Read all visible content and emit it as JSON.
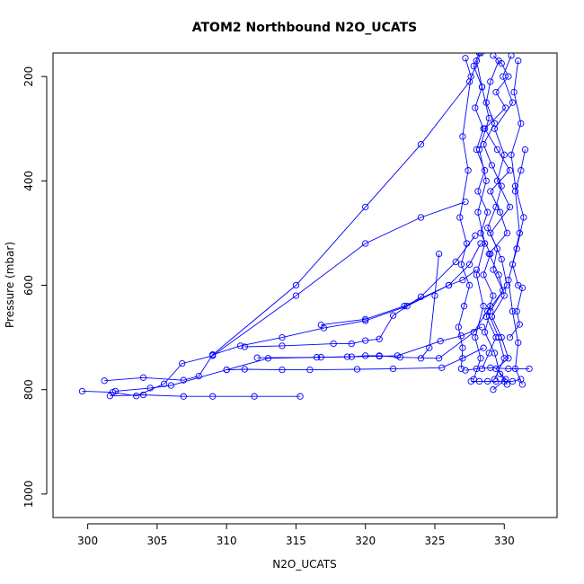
{
  "chart_data": {
    "type": "line",
    "title": "ATOM2 Northbound N2O_UCATS",
    "xlabel": "N2O_UCATS",
    "ylabel": "Pressure (mbar)",
    "xlim": [
      297.5,
      333.8
    ],
    "ylim": [
      1045,
      155
    ],
    "y_axis_inverted": true,
    "x_ticks": [
      300,
      305,
      310,
      315,
      320,
      325,
      330
    ],
    "y_ticks": [
      200,
      400,
      600,
      800,
      1000
    ],
    "grid": false,
    "legend": "none",
    "series_color": "#0000ff",
    "marker": "open-circle",
    "series": [
      {
        "values": [
          [
            329.2,
            160
          ],
          [
            329.8,
            175
          ],
          [
            330.3,
            200
          ],
          [
            329.4,
            230
          ],
          [
            330.1,
            260
          ],
          [
            328.6,
            300
          ],
          [
            329.5,
            340
          ],
          [
            330.4,
            380
          ],
          [
            329.0,
            420
          ],
          [
            329.7,
            460
          ],
          [
            330.2,
            500
          ],
          [
            328.9,
            540
          ],
          [
            329.6,
            580
          ],
          [
            330.0,
            620
          ],
          [
            329.1,
            660
          ],
          [
            329.8,
            700
          ],
          [
            330.3,
            740
          ],
          [
            329.4,
            760
          ],
          [
            330.1,
            780
          ],
          [
            329.2,
            800
          ]
        ]
      },
      {
        "values": [
          [
            330.5,
            160
          ],
          [
            329.9,
            200
          ],
          [
            330.6,
            250
          ],
          [
            329.3,
            300
          ],
          [
            330.0,
            350
          ],
          [
            329.5,
            400
          ],
          [
            330.4,
            450
          ],
          [
            329.0,
            500
          ],
          [
            329.8,
            550
          ],
          [
            330.2,
            600
          ],
          [
            328.8,
            650
          ],
          [
            329.6,
            700
          ],
          [
            330.0,
            740
          ],
          [
            329.3,
            780
          ]
        ]
      },
      {
        "values": [
          [
            328.0,
            170
          ],
          [
            328.4,
            220
          ],
          [
            328.9,
            280
          ],
          [
            328.2,
            340
          ],
          [
            328.7,
            400
          ],
          [
            328.1,
            460
          ],
          [
            328.6,
            520
          ],
          [
            328.0,
            580
          ],
          [
            328.5,
            640
          ],
          [
            327.9,
            700
          ],
          [
            328.3,
            740
          ],
          [
            327.8,
            780
          ]
        ]
      },
      {
        "values": [
          [
            331.5,
            340
          ],
          [
            331.2,
            380
          ],
          [
            330.8,
            420
          ],
          [
            331.1,
            500
          ],
          [
            330.6,
            560
          ],
          [
            331.0,
            600
          ],
          [
            331.3,
            605
          ],
          [
            330.9,
            650
          ],
          [
            331.1,
            675
          ],
          [
            330.4,
            700
          ]
        ]
      },
      {
        "values": [
          [
            327.2,
            165
          ],
          [
            327.6,
            200
          ],
          [
            327.0,
            315
          ],
          [
            327.4,
            380
          ],
          [
            326.8,
            470
          ],
          [
            327.3,
            520
          ],
          [
            326.9,
            560
          ],
          [
            327.5,
            600
          ],
          [
            327.1,
            640
          ],
          [
            326.7,
            680
          ],
          [
            327.0,
            720
          ],
          [
            326.9,
            760
          ]
        ]
      },
      {
        "values": [
          [
            329.6,
            170
          ],
          [
            329.0,
            210
          ],
          [
            328.7,
            250
          ],
          [
            329.3,
            290
          ],
          [
            328.5,
            330
          ],
          [
            329.1,
            370
          ],
          [
            329.8,
            410
          ],
          [
            329.4,
            450
          ],
          [
            328.8,
            490
          ],
          [
            329.5,
            530
          ],
          [
            329.2,
            570
          ],
          [
            329.9,
            610
          ],
          [
            329.0,
            650
          ],
          [
            328.6,
            690
          ],
          [
            329.3,
            730
          ],
          [
            329.7,
            770
          ],
          [
            330.2,
            790
          ]
        ]
      },
      {
        "values": [
          [
            331.0,
            170
          ],
          [
            330.7,
            230
          ],
          [
            331.2,
            290
          ],
          [
            330.5,
            350
          ],
          [
            330.8,
            410
          ],
          [
            331.4,
            470
          ],
          [
            330.9,
            530
          ],
          [
            330.3,
            590
          ],
          [
            330.6,
            650
          ],
          [
            331.0,
            710
          ],
          [
            330.8,
            760
          ],
          [
            331.3,
            790
          ]
        ]
      },
      {
        "values": [
          [
            301.2,
            783
          ],
          [
            304.0,
            777
          ],
          [
            306.9,
            782
          ],
          [
            308.0,
            774
          ],
          [
            309.0,
            733
          ],
          [
            311.0,
            716
          ],
          [
            314.0,
            700
          ],
          [
            317.0,
            682
          ],
          [
            320.0,
            668
          ],
          [
            323.0,
            640
          ],
          [
            326.0,
            600
          ],
          [
            327.0,
            590
          ],
          [
            328.0,
            570
          ]
        ]
      },
      {
        "values": [
          [
            299.6,
            803
          ],
          [
            301.8,
            805
          ],
          [
            303.5,
            812
          ],
          [
            305.5,
            789
          ],
          [
            306.8,
            750
          ],
          [
            309.0,
            735
          ],
          [
            315.0,
            620
          ],
          [
            320.0,
            520
          ],
          [
            324.0,
            470
          ],
          [
            327.2,
            440
          ]
        ]
      },
      {
        "values": [
          [
            301.6,
            812
          ],
          [
            304.0,
            810
          ],
          [
            306.9,
            813
          ],
          [
            309.0,
            813
          ],
          [
            312.0,
            813
          ],
          [
            315.3,
            813
          ]
        ]
      },
      {
        "values": [
          [
            302.0,
            803
          ],
          [
            304.5,
            797
          ],
          [
            306.0,
            792
          ],
          [
            310.0,
            762
          ],
          [
            311.3,
            761
          ],
          [
            314.0,
            762
          ],
          [
            316.0,
            762
          ],
          [
            319.4,
            761
          ],
          [
            322.0,
            760
          ],
          [
            325.5,
            758
          ],
          [
            327.0,
            740
          ],
          [
            328.5,
            720
          ]
        ]
      },
      {
        "values": [
          [
            310.0,
            762
          ],
          [
            313.0,
            740
          ],
          [
            316.5,
            738
          ],
          [
            319.0,
            737
          ],
          [
            320.0,
            735
          ],
          [
            321.0,
            735
          ],
          [
            322.5,
            738
          ],
          [
            325.3,
            740
          ],
          [
            327.8,
            690
          ],
          [
            329.0,
            640
          ]
        ]
      },
      {
        "values": [
          [
            311.3,
            718
          ],
          [
            314.0,
            716
          ],
          [
            317.7,
            712
          ],
          [
            319.0,
            712
          ],
          [
            320.0,
            706
          ],
          [
            321.0,
            703
          ],
          [
            322.0,
            658
          ],
          [
            324.0,
            622
          ],
          [
            326.5,
            555
          ],
          [
            327.9,
            505
          ]
        ]
      },
      {
        "values": [
          [
            316.8,
            676
          ],
          [
            320.0,
            665
          ],
          [
            322.8,
            640
          ],
          [
            326.0,
            600
          ],
          [
            327.5,
            560
          ],
          [
            328.3,
            520
          ]
        ]
      },
      {
        "values": [
          [
            312.2,
            739
          ],
          [
            316.8,
            738
          ],
          [
            318.7,
            737
          ],
          [
            321.0,
            736
          ],
          [
            322.3,
            735
          ],
          [
            325.4,
            707
          ],
          [
            326.9,
            697
          ],
          [
            328.4,
            680
          ]
        ]
      },
      {
        "values": [
          [
            309.0,
            733
          ],
          [
            315.0,
            600
          ],
          [
            320.0,
            450
          ],
          [
            324.0,
            330
          ],
          [
            327.5,
            210
          ],
          [
            328.3,
            155
          ]
        ]
      },
      {
        "values": [
          [
            325.3,
            540
          ],
          [
            325.0,
            620
          ],
          [
            324.6,
            720
          ],
          [
            324.0,
            740
          ]
        ]
      },
      {
        "values": [
          [
            327.6,
            784
          ],
          [
            328.2,
            784
          ],
          [
            328.8,
            784
          ],
          [
            329.4,
            784
          ],
          [
            330.0,
            784
          ],
          [
            330.6,
            784
          ],
          [
            331.2,
            780
          ]
        ]
      },
      {
        "values": [
          [
            327.2,
            763
          ],
          [
            328.0,
            760
          ],
          [
            329.0,
            758
          ],
          [
            330.3,
            760
          ],
          [
            331.8,
            760
          ]
        ]
      },
      {
        "values": [
          [
            328.4,
            760
          ],
          [
            328.9,
            730
          ],
          [
            329.4,
            700
          ],
          [
            328.7,
            660
          ],
          [
            329.2,
            620
          ],
          [
            328.5,
            580
          ],
          [
            329.0,
            540
          ],
          [
            328.3,
            500
          ],
          [
            328.8,
            460
          ],
          [
            328.1,
            420
          ],
          [
            328.6,
            380
          ],
          [
            328.0,
            340
          ],
          [
            328.5,
            300
          ],
          [
            327.9,
            260
          ],
          [
            328.4,
            220
          ],
          [
            327.8,
            180
          ],
          [
            328.2,
            155
          ]
        ]
      }
    ]
  }
}
